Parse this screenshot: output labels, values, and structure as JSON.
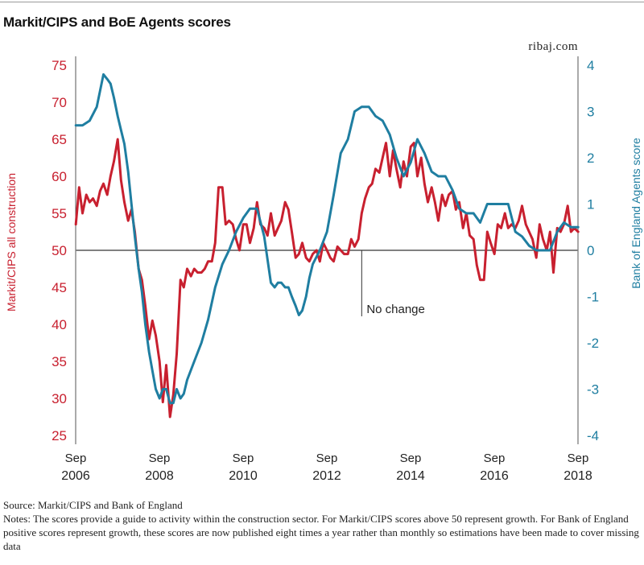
{
  "header": {
    "title": "Markit/CIPS and BoE Agents scores",
    "site": "ribaj.com"
  },
  "footer": {
    "source": "Source: Markit/CIPS and Bank of England",
    "notes": "Notes: The scores provide a guide to activity within the construction sector. For Markit/CIPS scores above 50 represent growth. For Bank of England positive scores represent growth, these scores are now published eight times a year rather than monthly so estimations have been made to cover missing data"
  },
  "colors": {
    "markit": "#c8202f",
    "boe": "#1f7ea1",
    "no_change_line": "#808080",
    "axis_text": "#222222"
  },
  "chart_data": {
    "type": "line",
    "annotation": "No change",
    "x_ticks": [
      {
        "x": 2006.667,
        "label": [
          "Sep",
          "2006"
        ]
      },
      {
        "x": 2008.667,
        "label": [
          "Sep",
          "2008"
        ]
      },
      {
        "x": 2010.667,
        "label": [
          "Sep",
          "2010"
        ]
      },
      {
        "x": 2012.667,
        "label": [
          "Sep",
          "2012"
        ]
      },
      {
        "x": 2014.667,
        "label": [
          "Sep",
          "2014"
        ]
      },
      {
        "x": 2016.667,
        "label": [
          "Sep",
          "2016"
        ]
      },
      {
        "x": 2018.667,
        "label": [
          "Sep",
          "2018"
        ]
      }
    ],
    "xlim": [
      2006.667,
      2018.667
    ],
    "left_axis": {
      "label": "Markit/CIPS all construction",
      "ylim": [
        25,
        75
      ],
      "ticks": [
        25,
        30,
        35,
        40,
        45,
        50,
        55,
        60,
        65,
        70,
        75
      ],
      "reference": 50
    },
    "right_axis": {
      "label": "Bank of England Agents score",
      "ylim": [
        -4,
        4
      ],
      "ticks": [
        -4,
        -3,
        -2,
        -1,
        0,
        1,
        2,
        3,
        4
      ]
    },
    "series": [
      {
        "axis": "left",
        "x": [
          2006.67,
          2006.75,
          2006.83,
          2006.92,
          2007.0,
          2007.08,
          2007.17,
          2007.25,
          2007.33,
          2007.42,
          2007.5,
          2007.58,
          2007.67,
          2007.75,
          2007.83,
          2007.92,
          2008.0,
          2008.08,
          2008.17,
          2008.25,
          2008.33,
          2008.42,
          2008.5,
          2008.58,
          2008.67,
          2008.75,
          2008.83,
          2008.92,
          2009.0,
          2009.08,
          2009.17,
          2009.25,
          2009.33,
          2009.42,
          2009.5,
          2009.58,
          2009.67,
          2009.75,
          2009.83,
          2009.92,
          2010.0,
          2010.08,
          2010.17,
          2010.25,
          2010.33,
          2010.42,
          2010.5,
          2010.58,
          2010.67,
          2010.75,
          2010.83,
          2010.92,
          2011.0,
          2011.08,
          2011.17,
          2011.25,
          2011.33,
          2011.42,
          2011.5,
          2011.58,
          2011.67,
          2011.75,
          2011.83,
          2011.92,
          2012.0,
          2012.08,
          2012.17,
          2012.25,
          2012.33,
          2012.42,
          2012.5,
          2012.58,
          2012.67,
          2012.75,
          2012.83,
          2012.92,
          2013.0,
          2013.08,
          2013.17,
          2013.25,
          2013.33,
          2013.42,
          2013.5,
          2013.58,
          2013.67,
          2013.75,
          2013.83,
          2013.92,
          2014.0,
          2014.08,
          2014.17,
          2014.25,
          2014.33,
          2014.42,
          2014.5,
          2014.58,
          2014.67,
          2014.75,
          2014.83,
          2014.92,
          2015.0,
          2015.08,
          2015.17,
          2015.25,
          2015.33,
          2015.42,
          2015.5,
          2015.58,
          2015.67,
          2015.75,
          2015.83,
          2015.92,
          2016.0,
          2016.08,
          2016.17,
          2016.25,
          2016.33,
          2016.42,
          2016.5,
          2016.58,
          2016.67,
          2016.75,
          2016.83,
          2016.92,
          2017.0,
          2017.08,
          2017.17,
          2017.25,
          2017.33,
          2017.42,
          2017.5,
          2017.58,
          2017.67,
          2017.75,
          2017.83,
          2017.92,
          2018.0,
          2018.08,
          2018.17,
          2018.25,
          2018.33,
          2018.42,
          2018.5,
          2018.58,
          2018.67
        ],
        "y": [
          53.5,
          58.5,
          55.0,
          57.5,
          56.5,
          57.0,
          56.0,
          58.0,
          59.0,
          57.5,
          60.0,
          62.0,
          65.0,
          59.5,
          56.5,
          54.0,
          55.5,
          52.5,
          47.5,
          46.0,
          42.5,
          38.0,
          40.5,
          38.5,
          35.0,
          29.5,
          34.5,
          27.5,
          30.5,
          36.0,
          46.0,
          45.0,
          47.5,
          46.5,
          47.5,
          47.0,
          47.0,
          47.5,
          48.5,
          48.5,
          51.0,
          58.5,
          58.5,
          53.5,
          54.0,
          53.5,
          51.5,
          50.0,
          53.5,
          53.5,
          51.0,
          53.0,
          56.5,
          53.5,
          53.0,
          52.0,
          55.0,
          52.0,
          53.0,
          54.0,
          56.5,
          55.5,
          52.5,
          49.0,
          49.5,
          51.0,
          49.0,
          48.5,
          49.5,
          50.0,
          48.5,
          51.0,
          50.0,
          49.0,
          48.5,
          50.5,
          50.0,
          49.5,
          49.5,
          51.5,
          50.5,
          51.5,
          55.0,
          57.0,
          58.5,
          59.0,
          61.0,
          60.5,
          62.5,
          64.5,
          60.0,
          63.5,
          61.0,
          58.5,
          62.0,
          60.0,
          64.0,
          64.5,
          60.0,
          62.5,
          59.0,
          56.5,
          58.5,
          56.5,
          54.0,
          57.5,
          56.0,
          57.5,
          58.0,
          55.5,
          56.5,
          53.0,
          55.0,
          52.0,
          51.5,
          48.0,
          46.0,
          46.0,
          52.5,
          51.0,
          49.5,
          53.5,
          53.0,
          55.0,
          53.0,
          53.5,
          53.0,
          54.0,
          56.0,
          53.5,
          52.5,
          51.5,
          49.0,
          53.5,
          51.5,
          50.0,
          52.5,
          47.0,
          53.0,
          52.5,
          53.5,
          56.0,
          52.5,
          53.0,
          52.5
        ]
      },
      {
        "axis": "right",
        "x": [
          2006.67,
          2006.83,
          2007.0,
          2007.17,
          2007.33,
          2007.42,
          2007.5,
          2007.58,
          2007.67,
          2007.75,
          2007.83,
          2007.92,
          2008.0,
          2008.08,
          2008.17,
          2008.25,
          2008.33,
          2008.42,
          2008.5,
          2008.58,
          2008.67,
          2008.75,
          2008.83,
          2008.92,
          2009.0,
          2009.08,
          2009.17,
          2009.25,
          2009.33,
          2009.5,
          2009.67,
          2009.83,
          2010.0,
          2010.17,
          2010.33,
          2010.5,
          2010.67,
          2010.83,
          2011.0,
          2011.17,
          2011.33,
          2011.42,
          2011.5,
          2011.58,
          2011.67,
          2011.75,
          2011.83,
          2011.92,
          2012.0,
          2012.08,
          2012.17,
          2012.25,
          2012.33,
          2012.5,
          2012.67,
          2012.83,
          2013.0,
          2013.17,
          2013.33,
          2013.5,
          2013.67,
          2013.83,
          2014.0,
          2014.17,
          2014.33,
          2014.5,
          2014.67,
          2014.83,
          2015.0,
          2015.17,
          2015.33,
          2015.5,
          2015.67,
          2015.83,
          2016.0,
          2016.17,
          2016.33,
          2016.5,
          2016.67,
          2016.83,
          2017.0,
          2017.17,
          2017.33,
          2017.5,
          2017.67,
          2017.83,
          2018.0,
          2018.17,
          2018.33,
          2018.5,
          2018.67
        ],
        "y": [
          2.7,
          2.7,
          2.8,
          3.1,
          3.8,
          3.7,
          3.6,
          3.3,
          2.9,
          2.6,
          2.3,
          1.7,
          1.0,
          0.3,
          -0.4,
          -0.9,
          -1.6,
          -2.2,
          -2.6,
          -3.0,
          -3.2,
          -3.0,
          -3.0,
          -3.3,
          -3.3,
          -3.0,
          -3.2,
          -3.1,
          -2.8,
          -2.4,
          -2.0,
          -1.5,
          -0.8,
          -0.3,
          0.0,
          0.4,
          0.7,
          0.9,
          0.9,
          0.3,
          -0.7,
          -0.8,
          -0.7,
          -0.7,
          -0.8,
          -0.8,
          -1.0,
          -1.2,
          -1.4,
          -1.3,
          -1.0,
          -0.6,
          -0.3,
          0.0,
          0.4,
          1.2,
          2.1,
          2.4,
          3.0,
          3.1,
          3.1,
          2.9,
          2.8,
          2.5,
          2.0,
          1.6,
          1.9,
          2.4,
          2.1,
          1.7,
          1.6,
          1.6,
          1.3,
          0.9,
          0.8,
          0.8,
          0.6,
          1.0,
          1.0,
          1.0,
          1.0,
          0.4,
          0.3,
          0.1,
          0.0,
          0.0,
          0.0,
          0.4,
          0.6,
          0.5,
          0.5
        ]
      }
    ]
  }
}
